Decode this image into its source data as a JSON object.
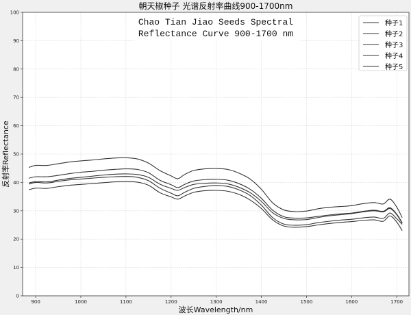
{
  "chart_data": {
    "type": "line",
    "title": "朝天椒种子 光谱反射率曲线900-1700nm",
    "annotation": [
      "Chao Tian Jiao Seeds Spectral",
      "Reflectance Curve 900-1700 nm"
    ],
    "xlabel": "波长Wavelength/nm",
    "ylabel": "反射率Reflectance",
    "xlim": [
      871,
      1727
    ],
    "ylim": [
      0,
      100
    ],
    "xticks": [
      900,
      1000,
      1100,
      1200,
      1300,
      1400,
      1500,
      1600,
      1700
    ],
    "yticks": [
      0,
      10,
      20,
      30,
      40,
      50,
      60,
      70,
      80,
      90,
      100
    ],
    "grid": true,
    "legend_position": "top-right",
    "line_color": "#333333",
    "x": [
      885,
      900,
      925,
      950,
      975,
      1000,
      1025,
      1050,
      1075,
      1100,
      1125,
      1150,
      1175,
      1200,
      1215,
      1230,
      1250,
      1275,
      1300,
      1325,
      1350,
      1375,
      1400,
      1425,
      1450,
      1475,
      1500,
      1525,
      1550,
      1575,
      1600,
      1625,
      1650,
      1670,
      1685,
      1700,
      1712
    ],
    "series": [
      {
        "name": "种子1",
        "values": [
          45.3,
          46,
          46,
          46.6,
          47.2,
          47.6,
          47.9,
          48.3,
          48.6,
          48.7,
          48.3,
          46.8,
          44.2,
          42.3,
          41.3,
          42.8,
          44.2,
          44.8,
          44.9,
          44.6,
          43.3,
          41.2,
          37.6,
          32.8,
          30.3,
          29.7,
          29.9,
          30.7,
          31.2,
          31.5,
          31.8,
          32.5,
          32.9,
          32.4,
          34.1,
          31.3,
          27.6
        ]
      },
      {
        "name": "种子2",
        "values": [
          41.5,
          42,
          42,
          42.5,
          43.1,
          43.6,
          43.9,
          44.3,
          44.6,
          44.8,
          44.6,
          43.4,
          40.8,
          39.2,
          38.2,
          39.3,
          40.5,
          41,
          41.1,
          40.8,
          39.6,
          37.6,
          34.4,
          30.2,
          27.9,
          27.4,
          27.5,
          28,
          28.5,
          28.9,
          29.2,
          29.8,
          30.2,
          29.8,
          31.1,
          28.8,
          25.8
        ]
      },
      {
        "name": "种子3",
        "values": [
          39.8,
          40.3,
          40.2,
          40.8,
          41.4,
          41.8,
          42.2,
          42.6,
          42.9,
          43,
          42.8,
          41.8,
          39.4,
          37.9,
          37.2,
          38.2,
          39.3,
          39.7,
          39.8,
          39.5,
          38.3,
          36.4,
          33.3,
          29.3,
          27.3,
          26.8,
          26.9,
          27.6,
          28.2,
          28.6,
          29,
          29.6,
          30,
          29.6,
          30.8,
          28.6,
          25.6
        ]
      },
      {
        "name": "种子4",
        "values": [
          39.4,
          40,
          39.8,
          40.4,
          40.9,
          41.2,
          41.5,
          41.8,
          42,
          42.1,
          41.8,
          40.6,
          38,
          36.2,
          35.3,
          36.5,
          37.9,
          38.6,
          38.9,
          38.6,
          37.4,
          35.4,
          32,
          27.6,
          25.3,
          24.9,
          25.1,
          25.8,
          26.3,
          26.7,
          27,
          27.5,
          27.8,
          27.3,
          29.2,
          27.2,
          25.2
        ]
      },
      {
        "name": "种子5",
        "values": [
          37.4,
          38,
          37.9,
          38.5,
          39,
          39.3,
          39.6,
          39.9,
          40.2,
          40.3,
          40.1,
          39,
          36.4,
          34.9,
          34.1,
          35.2,
          36.5,
          37.1,
          37.2,
          36.9,
          35.8,
          33.8,
          30.8,
          26.8,
          24.6,
          24.2,
          24.4,
          25,
          25.5,
          25.9,
          26.2,
          26.6,
          26.8,
          26.3,
          28.2,
          26,
          23
        ]
      }
    ]
  }
}
